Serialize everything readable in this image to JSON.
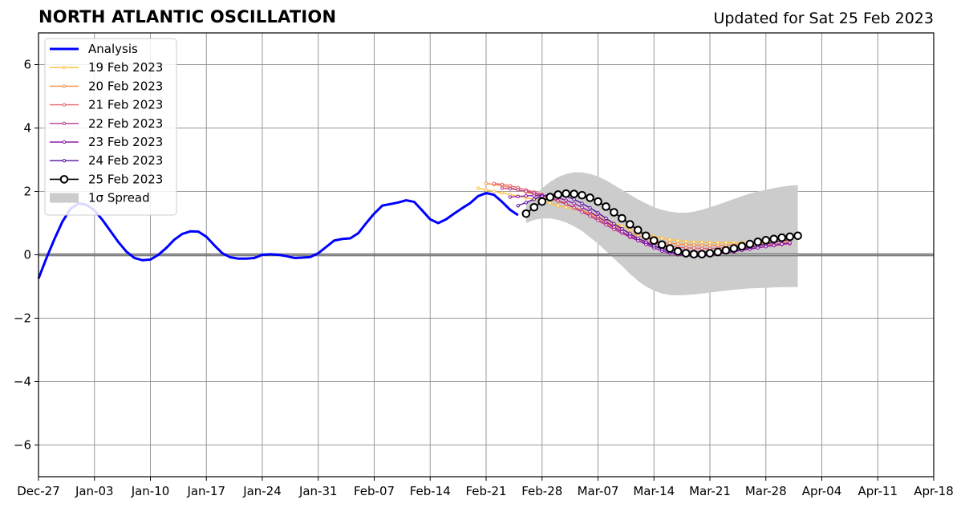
{
  "header": {
    "title": "NORTH ATLANTIC OSCILLATION",
    "subtitle": "Updated for Sat 25 Feb 2023"
  },
  "chart_data": {
    "type": "line",
    "title": "NORTH ATLANTIC OSCILLATION",
    "subtitle": "Updated for Sat 25 Feb 2023",
    "xlabel": "",
    "ylabel": "",
    "x_unit": "days since Dec-27",
    "xlim": [
      0,
      112
    ],
    "ylim": [
      -7,
      7
    ],
    "grid": true,
    "legend_position": "top-left",
    "x_ticks": [
      "Dec-27",
      "Jan-03",
      "Jan-10",
      "Jan-17",
      "Jan-24",
      "Jan-31",
      "Feb-07",
      "Feb-14",
      "Feb-21",
      "Feb-28",
      "Mar-07",
      "Mar-14",
      "Mar-21",
      "Mar-28",
      "Apr-04",
      "Apr-11",
      "Apr-18"
    ],
    "y_ticks": [
      "6",
      "4",
      "2",
      "0",
      "−2",
      "−4",
      "−6"
    ],
    "analysis": {
      "name": "Analysis",
      "color": "#0000ff",
      "x": [
        0,
        1,
        2,
        3,
        4,
        5,
        6,
        7,
        8,
        9,
        10,
        11,
        12,
        13,
        14,
        15,
        16,
        17,
        18,
        19,
        20,
        21,
        22,
        23,
        24,
        25,
        26,
        27,
        28,
        29,
        30,
        31,
        32,
        33,
        34,
        35,
        36,
        37,
        38,
        39,
        40,
        41,
        42,
        43,
        44,
        45,
        46,
        47,
        48,
        49,
        50,
        51,
        52,
        53,
        54,
        55,
        56,
        57,
        58,
        59,
        60
      ],
      "y": [
        -0.75,
        -0.1,
        0.5,
        1.05,
        1.45,
        1.62,
        1.58,
        1.4,
        1.1,
        0.75,
        0.4,
        0.1,
        -0.1,
        -0.17,
        -0.15,
        0.0,
        0.22,
        0.48,
        0.66,
        0.74,
        0.73,
        0.57,
        0.3,
        0.05,
        -0.08,
        -0.12,
        -0.12,
        -0.1,
        0.0,
        0.02,
        0.0,
        -0.04,
        -0.1,
        -0.09,
        -0.07,
        0.05,
        0.25,
        0.45,
        0.5,
        0.52,
        0.68,
        1.0,
        1.3,
        1.55,
        1.6,
        1.65,
        1.72,
        1.67,
        1.4,
        1.12,
        1.0,
        1.12,
        1.3,
        1.47,
        1.63,
        1.85,
        1.95,
        1.89,
        1.67,
        1.42,
        1.25
      ]
    },
    "forecasts": [
      {
        "name": "19 Feb 2023",
        "color": "#fdbf3a",
        "x": [
          55,
          56,
          57,
          58,
          59,
          60,
          61,
          62,
          63,
          64,
          65,
          66,
          67,
          68,
          69,
          70,
          71,
          72,
          73,
          74,
          75,
          76,
          77,
          78,
          79,
          80,
          81,
          82,
          83,
          84,
          85,
          86,
          87,
          88,
          89,
          90,
          91,
          92,
          93,
          94
        ],
        "y": [
          2.1,
          2.05,
          2.0,
          1.95,
          1.9,
          1.85,
          1.8,
          1.75,
          1.7,
          1.63,
          1.55,
          1.5,
          1.45,
          1.38,
          1.32,
          1.22,
          1.1,
          1.0,
          0.9,
          0.82,
          0.72,
          0.65,
          0.58,
          0.53,
          0.48,
          0.45,
          0.42,
          0.4,
          0.4,
          0.38,
          0.38,
          0.38,
          0.38,
          0.38,
          0.39,
          0.39,
          0.4,
          0.42,
          0.44,
          0.46
        ]
      },
      {
        "name": "20 Feb 2023",
        "color": "#f68f45",
        "x": [
          56,
          57,
          58,
          59,
          60,
          61,
          62,
          63,
          64,
          65,
          66,
          67,
          68,
          69,
          70,
          71,
          72,
          73,
          74,
          75,
          76,
          77,
          78,
          79,
          80,
          81,
          82,
          83,
          84,
          85,
          86,
          87,
          88,
          89,
          90,
          91,
          92,
          93,
          94
        ],
        "y": [
          2.25,
          2.22,
          2.18,
          2.12,
          2.05,
          1.98,
          1.9,
          1.82,
          1.75,
          1.68,
          1.6,
          1.5,
          1.4,
          1.3,
          1.18,
          1.05,
          0.92,
          0.8,
          0.7,
          0.6,
          0.52,
          0.45,
          0.4,
          0.37,
          0.34,
          0.32,
          0.31,
          0.3,
          0.3,
          0.3,
          0.3,
          0.31,
          0.32,
          0.33,
          0.35,
          0.37,
          0.4,
          0.42,
          0.44
        ]
      },
      {
        "name": "21 Feb 2023",
        "color": "#e8646e",
        "x": [
          57,
          58,
          59,
          60,
          61,
          62,
          63,
          64,
          65,
          66,
          67,
          68,
          69,
          70,
          71,
          72,
          73,
          74,
          75,
          76,
          77,
          78,
          79,
          80,
          81,
          82,
          83,
          84,
          85,
          86,
          87,
          88,
          89,
          90,
          91,
          92,
          93,
          94
        ],
        "y": [
          2.25,
          2.22,
          2.18,
          2.12,
          2.05,
          1.98,
          1.9,
          1.82,
          1.72,
          1.62,
          1.5,
          1.38,
          1.25,
          1.12,
          0.98,
          0.85,
          0.72,
          0.6,
          0.5,
          0.42,
          0.35,
          0.3,
          0.27,
          0.24,
          0.22,
          0.21,
          0.2,
          0.2,
          0.21,
          0.22,
          0.23,
          0.25,
          0.27,
          0.29,
          0.31,
          0.33,
          0.36,
          0.38
        ]
      },
      {
        "name": "22 Feb 2023",
        "color": "#b83b8f",
        "x": [
          58,
          59,
          60,
          61,
          62,
          63,
          64,
          65,
          66,
          67,
          68,
          69,
          70,
          71,
          72,
          73,
          74,
          75,
          76,
          77,
          78,
          79,
          80,
          81,
          82,
          83,
          84,
          85,
          86,
          87,
          88,
          89,
          90,
          91,
          92,
          93,
          94
        ],
        "y": [
          2.1,
          2.08,
          2.05,
          2.0,
          1.95,
          1.88,
          1.8,
          1.7,
          1.6,
          1.48,
          1.35,
          1.22,
          1.08,
          0.94,
          0.8,
          0.68,
          0.55,
          0.45,
          0.36,
          0.28,
          0.22,
          0.17,
          0.14,
          0.12,
          0.11,
          0.1,
          0.1,
          0.11,
          0.13,
          0.15,
          0.17,
          0.2,
          0.23,
          0.26,
          0.29,
          0.32,
          0.35
        ]
      },
      {
        "name": "23 Feb 2023",
        "color": "#8d1ca7",
        "x": [
          59,
          60,
          61,
          62,
          63,
          64,
          65,
          66,
          67,
          68,
          69,
          70,
          71,
          72,
          73,
          74,
          75,
          76,
          77,
          78,
          79,
          80,
          81,
          82,
          83,
          84,
          85,
          86,
          87,
          88,
          89,
          90,
          91,
          92,
          93,
          94
        ],
        "y": [
          1.82,
          1.84,
          1.86,
          1.87,
          1.87,
          1.85,
          1.8,
          1.72,
          1.62,
          1.5,
          1.36,
          1.2,
          1.04,
          0.88,
          0.73,
          0.58,
          0.45,
          0.33,
          0.22,
          0.12,
          0.05,
          0.0,
          -0.03,
          -0.05,
          -0.04,
          -0.02,
          0.02,
          0.06,
          0.1,
          0.14,
          0.18,
          0.22,
          0.26,
          0.3,
          0.34,
          0.38
        ]
      },
      {
        "name": "24 Feb 2023",
        "color": "#5a0fa0",
        "x": [
          60,
          61,
          62,
          63,
          64,
          65,
          66,
          67,
          68,
          69,
          70,
          71,
          72,
          73,
          74,
          75,
          76,
          77,
          78,
          79,
          80,
          81,
          82,
          83,
          84,
          85,
          86,
          87,
          88,
          89,
          90,
          91,
          92,
          93,
          94
        ],
        "y": [
          1.55,
          1.65,
          1.75,
          1.85,
          1.9,
          1.9,
          1.85,
          1.75,
          1.62,
          1.48,
          1.32,
          1.15,
          0.98,
          0.82,
          0.66,
          0.52,
          0.4,
          0.28,
          0.18,
          0.1,
          0.04,
          0.0,
          -0.02,
          -0.02,
          0.0,
          0.04,
          0.09,
          0.14,
          0.19,
          0.24,
          0.29,
          0.34,
          0.39,
          0.44,
          0.49
        ]
      },
      {
        "name": "25 Feb 2023",
        "color": "#000000",
        "hollow": true,
        "x": [
          61,
          62,
          63,
          64,
          65,
          66,
          67,
          68,
          69,
          70,
          71,
          72,
          73,
          74,
          75,
          76,
          77,
          78,
          79,
          80,
          81,
          82,
          83,
          84,
          85,
          86,
          87,
          88,
          89,
          90,
          91,
          92,
          93,
          94,
          95
        ],
        "y": [
          1.3,
          1.5,
          1.68,
          1.82,
          1.9,
          1.93,
          1.92,
          1.88,
          1.8,
          1.68,
          1.52,
          1.34,
          1.15,
          0.96,
          0.78,
          0.6,
          0.45,
          0.32,
          0.2,
          0.11,
          0.05,
          0.02,
          0.02,
          0.05,
          0.09,
          0.14,
          0.2,
          0.27,
          0.34,
          0.41,
          0.46,
          0.5,
          0.54,
          0.57,
          0.6
        ]
      }
    ],
    "spread": {
      "name": "1σ Spread",
      "color": "#cccccc",
      "x": [
        61,
        62,
        63,
        64,
        65,
        66,
        67,
        68,
        69,
        70,
        71,
        72,
        73,
        74,
        75,
        76,
        77,
        78,
        79,
        80,
        81,
        82,
        83,
        84,
        85,
        86,
        87,
        88,
        89,
        90,
        91,
        92,
        93,
        94,
        95
      ],
      "upper": [
        1.6,
        1.85,
        2.1,
        2.3,
        2.45,
        2.55,
        2.6,
        2.6,
        2.55,
        2.47,
        2.35,
        2.2,
        2.05,
        1.9,
        1.75,
        1.62,
        1.5,
        1.42,
        1.36,
        1.33,
        1.33,
        1.36,
        1.42,
        1.5,
        1.58,
        1.67,
        1.76,
        1.85,
        1.93,
        2.0,
        2.05,
        2.1,
        2.15,
        2.18,
        2.2
      ],
      "lower": [
        1.0,
        1.1,
        1.15,
        1.15,
        1.1,
        1.02,
        0.9,
        0.75,
        0.55,
        0.35,
        0.12,
        -0.12,
        -0.35,
        -0.6,
        -0.82,
        -1.0,
        -1.13,
        -1.22,
        -1.27,
        -1.28,
        -1.27,
        -1.25,
        -1.22,
        -1.19,
        -1.16,
        -1.13,
        -1.1,
        -1.08,
        -1.06,
        -1.05,
        -1.04,
        -1.03,
        -1.02,
        -1.02,
        -1.02
      ]
    },
    "legend": [
      "Analysis",
      "19 Feb 2023",
      "20 Feb 2023",
      "21 Feb 2023",
      "22 Feb 2023",
      "23 Feb 2023",
      "24 Feb 2023",
      "25 Feb 2023",
      "1σ Spread"
    ]
  }
}
